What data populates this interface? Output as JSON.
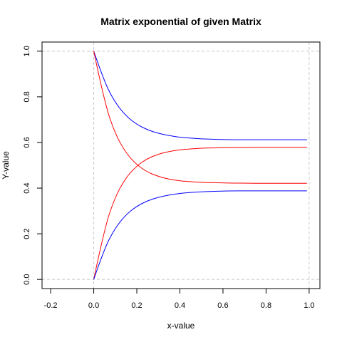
{
  "chart_data": {
    "type": "line",
    "title": "Matrix exponential of given Matrix",
    "xlabel": "x-value",
    "ylabel": "Y-value",
    "xlim": [
      -0.24,
      1.05
    ],
    "ylim": [
      -0.04,
      1.04
    ],
    "xticks": [
      -0.2,
      0.0,
      0.2,
      0.4,
      0.6,
      0.8,
      1.0
    ],
    "xtick_labels": [
      "-0.2",
      "0.0",
      "0.2",
      "0.4",
      "0.6",
      "0.8",
      "1.0"
    ],
    "yticks": [
      0.0,
      0.2,
      0.4,
      0.6,
      0.8,
      1.0
    ],
    "ytick_labels": [
      "0.0",
      "0.2",
      "0.4",
      "0.6",
      "0.8",
      "1.0"
    ],
    "grid": "dashed lines at x = 0, x = 1, y = 0, y = 1",
    "legend": "none",
    "x": [
      0.0,
      0.05,
      0.1,
      0.15,
      0.2,
      0.25,
      0.3,
      0.35,
      0.4,
      0.45,
      0.5,
      0.55,
      0.6,
      0.65,
      0.7,
      0.75,
      0.8,
      0.85,
      0.9,
      0.95,
      0.99
    ],
    "series": [
      {
        "color": "#0000ff",
        "values": [
          1.0,
          0.863,
          0.774,
          0.716,
          0.679,
          0.655,
          0.64,
          0.63,
          0.623,
          0.619,
          0.616,
          0.614,
          0.613,
          0.612,
          0.612,
          0.612,
          0.612,
          0.612,
          0.612,
          0.612,
          0.612
        ]
      },
      {
        "color": "#ff0000",
        "values": [
          1.0,
          0.775,
          0.637,
          0.553,
          0.502,
          0.47,
          0.451,
          0.439,
          0.432,
          0.428,
          0.425,
          0.424,
          0.423,
          0.422,
          0.422,
          0.421,
          0.421,
          0.421,
          0.421,
          0.421,
          0.421
        ]
      },
      {
        "color": "#ff0000",
        "values": [
          0.0,
          0.225,
          0.363,
          0.447,
          0.498,
          0.53,
          0.549,
          0.561,
          0.568,
          0.572,
          0.575,
          0.576,
          0.577,
          0.578,
          0.578,
          0.579,
          0.579,
          0.579,
          0.579,
          0.579,
          0.579
        ]
      },
      {
        "color": "#0000ff",
        "values": [
          0.0,
          0.137,
          0.226,
          0.284,
          0.321,
          0.345,
          0.36,
          0.37,
          0.377,
          0.381,
          0.384,
          0.386,
          0.387,
          0.388,
          0.388,
          0.388,
          0.388,
          0.388,
          0.388,
          0.388,
          0.388
        ]
      }
    ]
  }
}
